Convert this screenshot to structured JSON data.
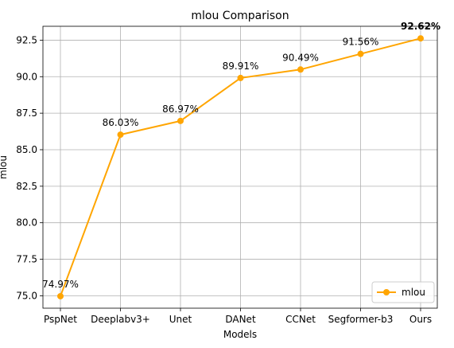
{
  "chart_data": {
    "type": "line",
    "title": "mlou Comparison",
    "xlabel": "Models",
    "ylabel": "mlou",
    "categories": [
      "PspNet",
      "Deeplabv3+",
      "Unet",
      "DANet",
      "CCNet",
      "Segformer-b3",
      "Ours"
    ],
    "series": [
      {
        "name": "mlou",
        "values": [
          74.97,
          86.03,
          86.97,
          89.91,
          90.49,
          91.56,
          92.62
        ],
        "labels": [
          "74.97%",
          "86.03%",
          "86.97%",
          "89.91%",
          "90.49%",
          "91.56%",
          "92.62%"
        ],
        "color": "#FFA500"
      }
    ],
    "ylim": [
      74.15,
      93.45
    ],
    "yticks": [
      75.0,
      77.5,
      80.0,
      82.5,
      85.0,
      87.5,
      90.0,
      92.5
    ],
    "ytick_labels": [
      "75.0",
      "77.5",
      "80.0",
      "82.5",
      "85.0",
      "87.5",
      "90.0",
      "92.5"
    ],
    "grid": true,
    "legend_position": "bottom-right"
  }
}
